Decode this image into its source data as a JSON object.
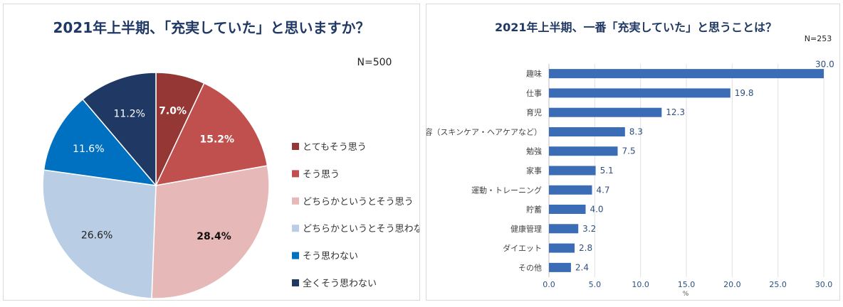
{
  "chart_data": [
    {
      "type": "pie",
      "title": "2021年上半期、「充実していた」と思いますか？",
      "sample_size": "N=500",
      "legend_position": "right",
      "slices": [
        {
          "label": "とてもそう思う",
          "value": 7.0,
          "display": "7.0%",
          "color": "#953735",
          "label_color": "#ffffff",
          "bold": true
        },
        {
          "label": "そう思う",
          "value": 15.2,
          "display": "15.2%",
          "color": "#c0504d",
          "label_color": "#ffffff",
          "bold": true
        },
        {
          "label": "どちらかというとそう思う",
          "value": 28.4,
          "display": "28.4%",
          "color": "#e6b9b8",
          "label_color": "#111111",
          "bold": true
        },
        {
          "label": "どちらかというとそう思わない",
          "value": 26.6,
          "display": "26.6%",
          "color": "#b9cde5",
          "label_color": "#222222",
          "bold": false
        },
        {
          "label": "そう思わない",
          "value": 11.6,
          "display": "11.6%",
          "color": "#0070c0",
          "label_color": "#ffffff",
          "bold": false
        },
        {
          "label": "全くそう思わない",
          "value": 11.2,
          "display": "11.2%",
          "color": "#1f3864",
          "label_color": "#ffffff",
          "bold": false
        }
      ]
    },
    {
      "type": "bar",
      "orientation": "horizontal",
      "title": "2021年上半期、一番「充実していた」と思うことは？",
      "sample_size": "N=253",
      "xlabel": "%",
      "xlim": [
        0,
        30
      ],
      "xticks": [
        "0.0",
        "5.0",
        "10.0",
        "15.0",
        "20.0",
        "25.0",
        "30.0"
      ],
      "grid": true,
      "bar_color": "#3a6db5",
      "categories": [
        "趣味",
        "仕事",
        "育児",
        "美容（スキンケア・ヘアケアなど）",
        "勉強",
        "家事",
        "運動・トレーニング",
        "貯蓄",
        "健康管理",
        "ダイエット",
        "その他"
      ],
      "values": [
        30.0,
        19.8,
        12.3,
        8.3,
        7.5,
        5.1,
        4.7,
        4.0,
        3.2,
        2.8,
        2.4
      ]
    }
  ]
}
